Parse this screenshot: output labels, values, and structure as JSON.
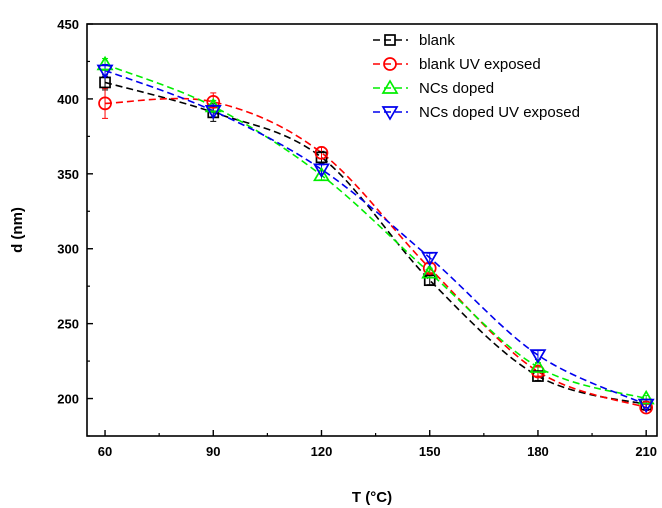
{
  "chart_data": {
    "type": "line",
    "xlabel": "T (°C)",
    "ylabel": "d (nm)",
    "xlim": [
      55,
      213
    ],
    "ylim": [
      175,
      450
    ],
    "x_ticks": [
      60,
      90,
      120,
      150,
      180,
      210
    ],
    "x_tick_labels": [
      "60",
      "90",
      "120",
      "150",
      "180",
      "210"
    ],
    "y_ticks": [
      200,
      250,
      300,
      350,
      400,
      450
    ],
    "y_tick_labels": [
      "200",
      "250",
      "300",
      "350",
      "400",
      "450"
    ],
    "line_style": "dashed",
    "smoothed": true,
    "legend_position": "top-right",
    "grid": false,
    "x": [
      60,
      90,
      120,
      150,
      180,
      210
    ],
    "series": [
      {
        "name": "blank",
        "color": "#000000",
        "marker": "square",
        "values": [
          411,
          391,
          361,
          279,
          215,
          196
        ],
        "errors": [
          5,
          6,
          4,
          3,
          3,
          2
        ]
      },
      {
        "name": "blank UV exposed",
        "color": "#ff0000",
        "marker": "circle",
        "values": [
          397,
          398,
          364,
          287,
          218,
          194
        ],
        "errors": [
          10,
          6,
          4,
          3,
          3,
          2
        ]
      },
      {
        "name": "NCs doped",
        "color": "#00ee00",
        "marker": "triangle-up",
        "values": [
          423,
          395,
          349,
          284,
          221,
          200
        ],
        "errors": [
          4,
          4,
          3,
          3,
          3,
          2
        ]
      },
      {
        "name": "NCs doped UV exposed",
        "color": "#0000ee",
        "marker": "triangle-down",
        "values": [
          419,
          392,
          353,
          294,
          229,
          196
        ],
        "errors": [
          4,
          4,
          3,
          3,
          3,
          2
        ]
      }
    ]
  }
}
